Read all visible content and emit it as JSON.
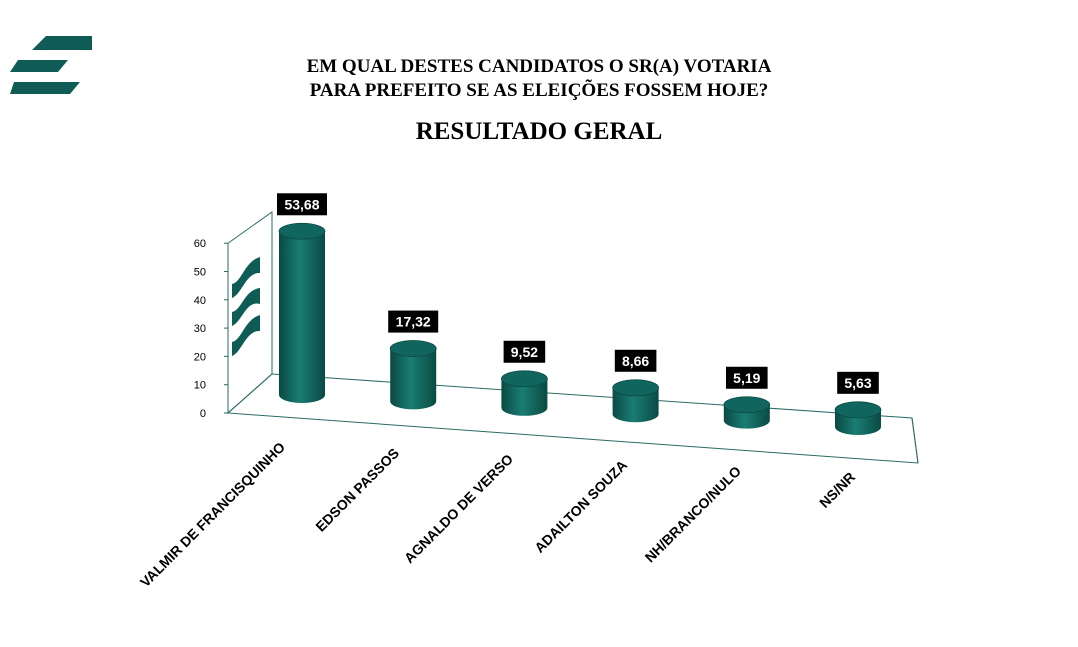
{
  "header": {
    "title_line1": "EM QUAL DESTES CANDIDATOS O SR(A) VOTARIA",
    "title_line2": "PARA PREFEITO SE AS ELEIÇÕES FOSSEM HOJE?",
    "subtitle": "RESULTADO GERAL"
  },
  "colors": {
    "brand": "#0e5c55",
    "bar": "#10665e",
    "bar_dark": "#0a4a44",
    "bar_light": "#1f8a7f",
    "label_bg": "#000000",
    "axis": "#2a6b64"
  },
  "logo": {
    "icon": "brand-logo-icon"
  },
  "chart_data": {
    "type": "bar",
    "style": "3d-cylinder",
    "categories": [
      "VALMIR DE FRANCISQUINHO",
      "EDSON PASSOS",
      "AGNALDO DE VERSO",
      "ADAILTON SOUZA",
      "NH/BRANCO/NULO",
      "NS/NR"
    ],
    "values": [
      53.68,
      17.32,
      9.52,
      8.66,
      5.19,
      5.63
    ],
    "data_labels": [
      "53,68",
      "17,32",
      "9,52",
      "8,66",
      "5,19",
      "5,63"
    ],
    "y_ticks": [
      "0",
      "10",
      "20",
      "30",
      "40",
      "50",
      "60"
    ],
    "ylim": [
      0,
      60
    ],
    "grid": false,
    "legend": "none"
  }
}
